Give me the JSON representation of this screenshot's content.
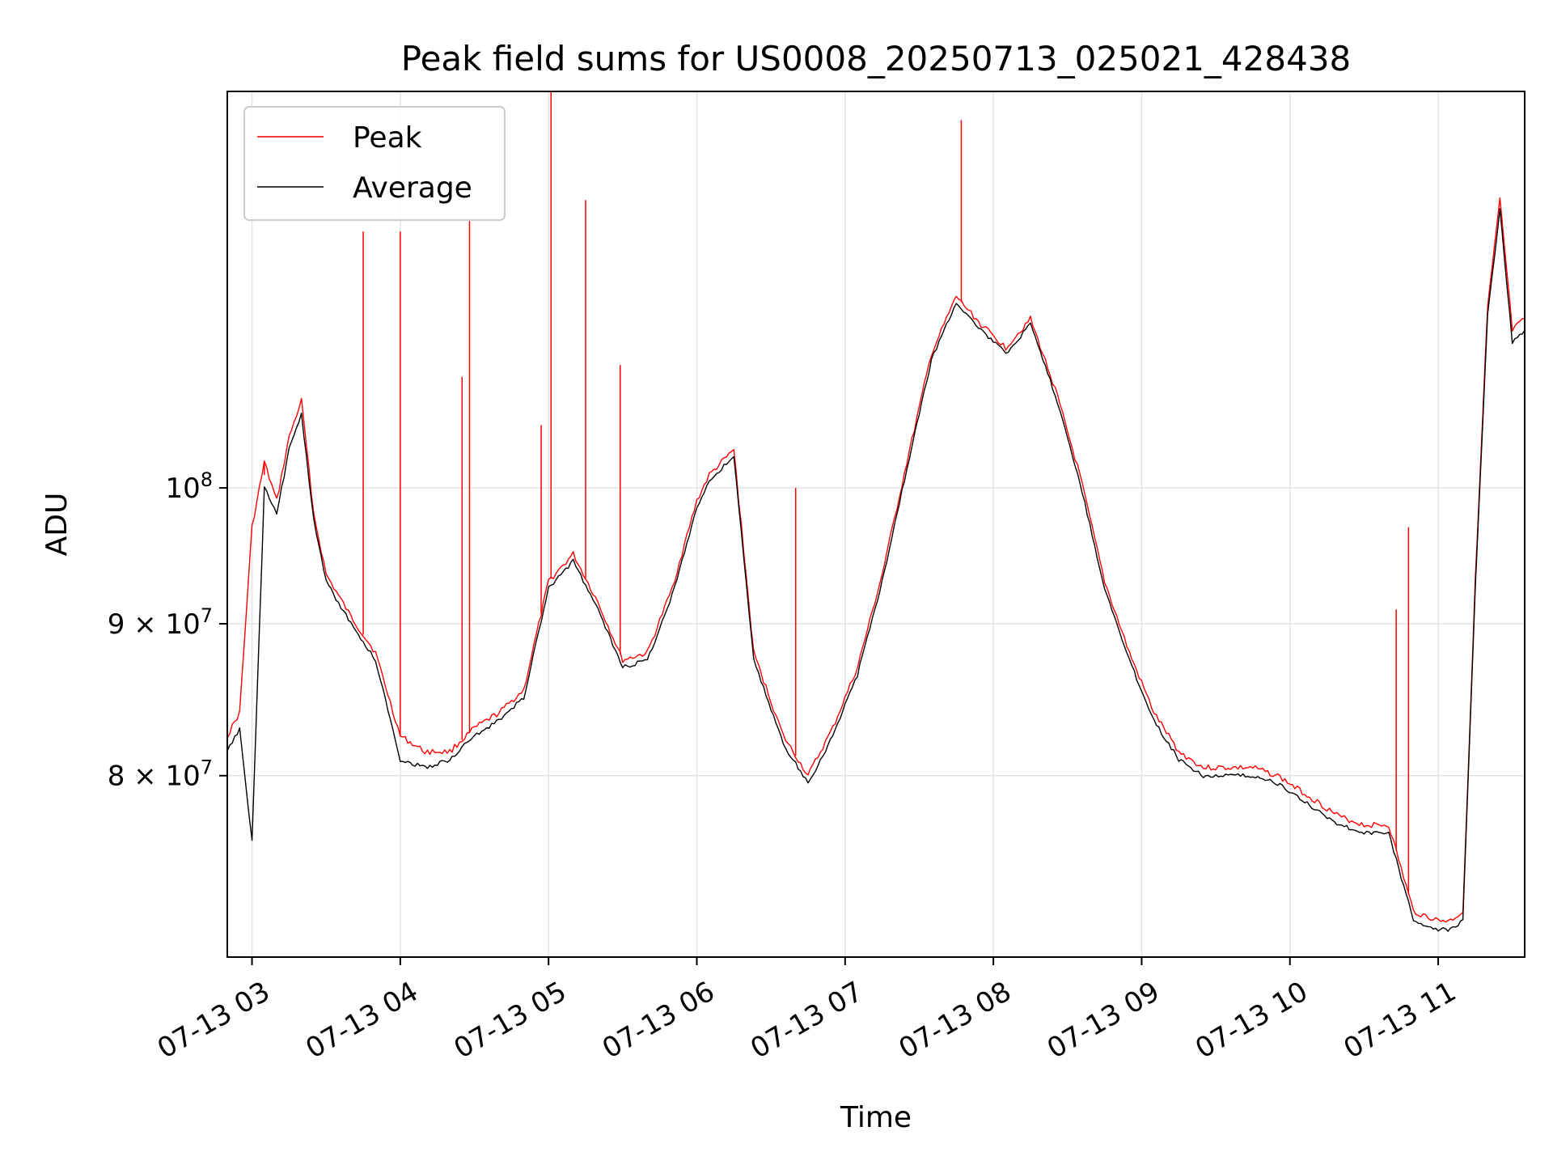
{
  "chart_data": {
    "type": "line",
    "title": "Peak field sums for US0008_20250713_025021_428438",
    "xlabel": "Time",
    "ylabel": "ADU",
    "x_ticks": [
      "07-13 03",
      "07-13 04",
      "07-13 05",
      "07-13 06",
      "07-13 07",
      "07-13 08",
      "07-13 09",
      "07-13 10",
      "07-13 11"
    ],
    "y_ticks": [
      {
        "value": 80000000,
        "mantissa": "8",
        "exponent": "7",
        "times": "×"
      },
      {
        "value": 90000000,
        "mantissa": "9",
        "exponent": "7",
        "times": "×"
      },
      {
        "value": 100000000,
        "mantissa": "10",
        "exponent": "8",
        "times": ""
      }
    ],
    "y_scale": "log",
    "xlim": [
      "2025-07-13T02:50",
      "2025-07-13T11:35"
    ],
    "ylim": [
      69500000,
      136000000
    ],
    "grid": true,
    "legend_position": "upper-left",
    "series": [
      {
        "name": "Peak",
        "color": "#ff0000",
        "x": [
          "2025-07-13T02:50",
          "2025-07-13T02:55",
          "2025-07-13T03:00",
          "2025-07-13T03:05",
          "2025-07-13T03:10",
          "2025-07-13T03:15",
          "2025-07-13T03:20",
          "2025-07-13T03:25",
          "2025-07-13T03:30",
          "2025-07-13T03:40",
          "2025-07-13T03:50",
          "2025-07-13T04:00",
          "2025-07-13T04:10",
          "2025-07-13T04:20",
          "2025-07-13T04:30",
          "2025-07-13T04:40",
          "2025-07-13T04:50",
          "2025-07-13T05:00",
          "2025-07-13T05:10",
          "2025-07-13T05:20",
          "2025-07-13T05:30",
          "2025-07-13T05:40",
          "2025-07-13T05:50",
          "2025-07-13T06:00",
          "2025-07-13T06:05",
          "2025-07-13T06:15",
          "2025-07-13T06:23",
          "2025-07-13T06:35",
          "2025-07-13T06:45",
          "2025-07-13T06:55",
          "2025-07-13T07:05",
          "2025-07-13T07:15",
          "2025-07-13T07:25",
          "2025-07-13T07:35",
          "2025-07-13T07:45",
          "2025-07-13T07:55",
          "2025-07-13T08:05",
          "2025-07-13T08:15",
          "2025-07-13T08:25",
          "2025-07-13T08:35",
          "2025-07-13T08:45",
          "2025-07-13T08:55",
          "2025-07-13T09:05",
          "2025-07-13T09:15",
          "2025-07-13T09:25",
          "2025-07-13T09:35",
          "2025-07-13T09:45",
          "2025-07-13T09:55",
          "2025-07-13T10:10",
          "2025-07-13T10:20",
          "2025-07-13T10:30",
          "2025-07-13T10:40",
          "2025-07-13T10:50",
          "2025-07-13T11:00",
          "2025-07-13T11:05",
          "2025-07-13T11:10",
          "2025-07-13T11:15",
          "2025-07-13T11:20",
          "2025-07-13T11:25",
          "2025-07-13T11:30",
          "2025-07-13T11:35"
        ],
        "y": [
          82500000,
          84000000,
          97000000,
          102000000,
          99000000,
          104000000,
          107000000,
          98000000,
          93500000,
          90500000,
          88000000,
          82500000,
          81500000,
          81500000,
          83000000,
          84000000,
          85500000,
          93000000,
          95000000,
          91500000,
          87500000,
          88000000,
          92500000,
          99000000,
          101000000,
          103000000,
          88000000,
          82500000,
          80000000,
          83000000,
          87000000,
          93500000,
          102000000,
          111000000,
          116000000,
          113500000,
          111500000,
          114000000,
          108000000,
          101000000,
          93000000,
          88000000,
          84000000,
          81500000,
          80500000,
          80500000,
          80500000,
          80000000,
          78500000,
          77500000,
          77000000,
          77000000,
          72000000,
          71500000,
          71500000,
          72000000,
          93000000,
          115000000,
          125000000,
          113000000,
          114000000
        ],
        "spikes": [
          {
            "x": "2025-07-13T03:05",
            "y": 101000000
          },
          {
            "x": "2025-07-13T03:45",
            "y": 122000000
          },
          {
            "x": "2025-07-13T04:00",
            "y": 122000000
          },
          {
            "x": "2025-07-13T04:25",
            "y": 109000000
          },
          {
            "x": "2025-07-13T04:28",
            "y": 123000000
          },
          {
            "x": "2025-07-13T04:57",
            "y": 105000000
          },
          {
            "x": "2025-07-13T05:01",
            "y": 136000000
          },
          {
            "x": "2025-07-13T05:15",
            "y": 125000000
          },
          {
            "x": "2025-07-13T05:29",
            "y": 110000000
          },
          {
            "x": "2025-07-13T06:40",
            "y": 100000000
          },
          {
            "x": "2025-07-13T07:47",
            "y": 133000000
          },
          {
            "x": "2025-07-13T10:43",
            "y": 91000000
          },
          {
            "x": "2025-07-13T10:48",
            "y": 97000000
          }
        ]
      },
      {
        "name": "Average",
        "color": "#000000",
        "x": [
          "2025-07-13T02:50",
          "2025-07-13T02:55",
          "2025-07-13T03:00",
          "2025-07-13T03:05",
          "2025-07-13T03:10",
          "2025-07-13T03:15",
          "2025-07-13T03:20",
          "2025-07-13T03:25",
          "2025-07-13T03:30",
          "2025-07-13T03:40",
          "2025-07-13T03:50",
          "2025-07-13T04:00",
          "2025-07-13T04:10",
          "2025-07-13T04:20",
          "2025-07-13T04:30",
          "2025-07-13T04:40",
          "2025-07-13T04:50",
          "2025-07-13T05:00",
          "2025-07-13T05:10",
          "2025-07-13T05:20",
          "2025-07-13T05:30",
          "2025-07-13T05:40",
          "2025-07-13T05:50",
          "2025-07-13T06:00",
          "2025-07-13T06:05",
          "2025-07-13T06:15",
          "2025-07-13T06:23",
          "2025-07-13T06:35",
          "2025-07-13T06:45",
          "2025-07-13T06:55",
          "2025-07-13T07:05",
          "2025-07-13T07:15",
          "2025-07-13T07:25",
          "2025-07-13T07:35",
          "2025-07-13T07:45",
          "2025-07-13T07:55",
          "2025-07-13T08:05",
          "2025-07-13T08:15",
          "2025-07-13T08:25",
          "2025-07-13T08:35",
          "2025-07-13T08:45",
          "2025-07-13T08:55",
          "2025-07-13T09:05",
          "2025-07-13T09:15",
          "2025-07-13T09:25",
          "2025-07-13T09:35",
          "2025-07-13T09:45",
          "2025-07-13T09:55",
          "2025-07-13T10:10",
          "2025-07-13T10:20",
          "2025-07-13T10:30",
          "2025-07-13T10:40",
          "2025-07-13T10:50",
          "2025-07-13T11:00",
          "2025-07-13T11:05",
          "2025-07-13T11:10",
          "2025-07-13T11:15",
          "2025-07-13T11:20",
          "2025-07-13T11:25",
          "2025-07-13T11:30",
          "2025-07-13T11:35"
        ],
        "y": [
          81500000,
          83000000,
          76000000,
          100000000,
          98000000,
          103000000,
          106000000,
          97500000,
          93000000,
          90000000,
          87500000,
          81000000,
          80500000,
          81000000,
          82500000,
          83500000,
          85000000,
          92500000,
          94500000,
          91000000,
          87000000,
          87500000,
          92000000,
          98500000,
          100500000,
          102500000,
          87500000,
          82000000,
          79500000,
          82500000,
          86500000,
          93000000,
          101500000,
          110500000,
          115500000,
          113000000,
          111000000,
          113500000,
          107500000,
          100500000,
          92500000,
          87500000,
          83500000,
          81000000,
          80000000,
          80000000,
          80000000,
          79500000,
          78000000,
          77000000,
          76500000,
          76500000,
          71500000,
          71000000,
          71000000,
          71500000,
          92500000,
          114500000,
          124000000,
          112000000,
          113000000
        ]
      }
    ]
  },
  "legend": {
    "items": [
      {
        "label": "Peak",
        "color": "#ff0000"
      },
      {
        "label": "Average",
        "color": "#000000"
      }
    ]
  }
}
